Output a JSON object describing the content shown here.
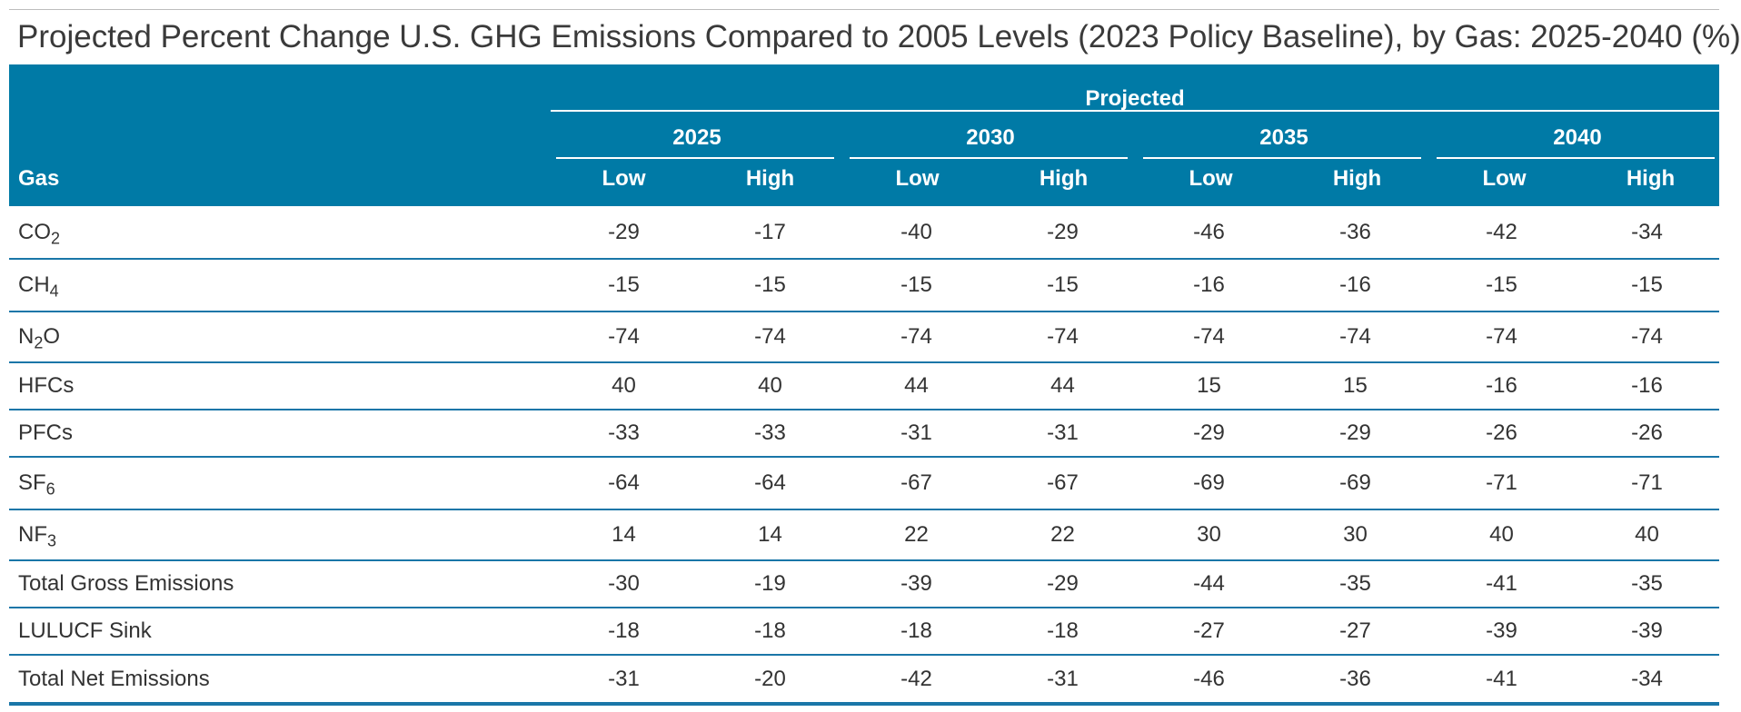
{
  "title": "Projected Percent Change U.S. GHG Emissions Compared to 2005 Levels (2023 Policy Baseline), by Gas: 2025-2040 (%)",
  "header": {
    "gas_label": "Gas",
    "group_label": "Projected",
    "years": [
      "2025",
      "2030",
      "2035",
      "2040"
    ],
    "low_label": "Low",
    "high_label": "High"
  },
  "rows": [
    {
      "gas": "CO",
      "sub": "2",
      "values": [
        "-29",
        "-17",
        "-40",
        "-29",
        "-46",
        "-36",
        "-42",
        "-34"
      ]
    },
    {
      "gas": "CH",
      "sub": "4",
      "values": [
        "-15",
        "-15",
        "-15",
        "-15",
        "-16",
        "-16",
        "-15",
        "-15"
      ]
    },
    {
      "gas": "N",
      "sub": "2",
      "suffix": "O",
      "values": [
        "-74",
        "-74",
        "-74",
        "-74",
        "-74",
        "-74",
        "-74",
        "-74"
      ]
    },
    {
      "gas": "HFCs",
      "values": [
        "40",
        "40",
        "44",
        "44",
        "15",
        "15",
        "-16",
        "-16"
      ]
    },
    {
      "gas": "PFCs",
      "values": [
        "-33",
        "-33",
        "-31",
        "-31",
        "-29",
        "-29",
        "-26",
        "-26"
      ]
    },
    {
      "gas": "SF",
      "sub": "6",
      "values": [
        "-64",
        "-64",
        "-67",
        "-67",
        "-69",
        "-69",
        "-71",
        "-71"
      ]
    },
    {
      "gas": "NF",
      "sub": "3",
      "values": [
        "14",
        "14",
        "22",
        "22",
        "30",
        "30",
        "40",
        "40"
      ]
    },
    {
      "gas": "Total Gross Emissions",
      "values": [
        "-30",
        "-19",
        "-39",
        "-29",
        "-44",
        "-35",
        "-41",
        "-35"
      ]
    },
    {
      "gas": "LULUCF Sink",
      "values": [
        "-18",
        "-18",
        "-18",
        "-18",
        "-27",
        "-27",
        "-39",
        "-39"
      ]
    },
    {
      "gas": "Total Net Emissions",
      "values": [
        "-31",
        "-20",
        "-42",
        "-31",
        "-46",
        "-36",
        "-41",
        "-34"
      ]
    }
  ]
}
